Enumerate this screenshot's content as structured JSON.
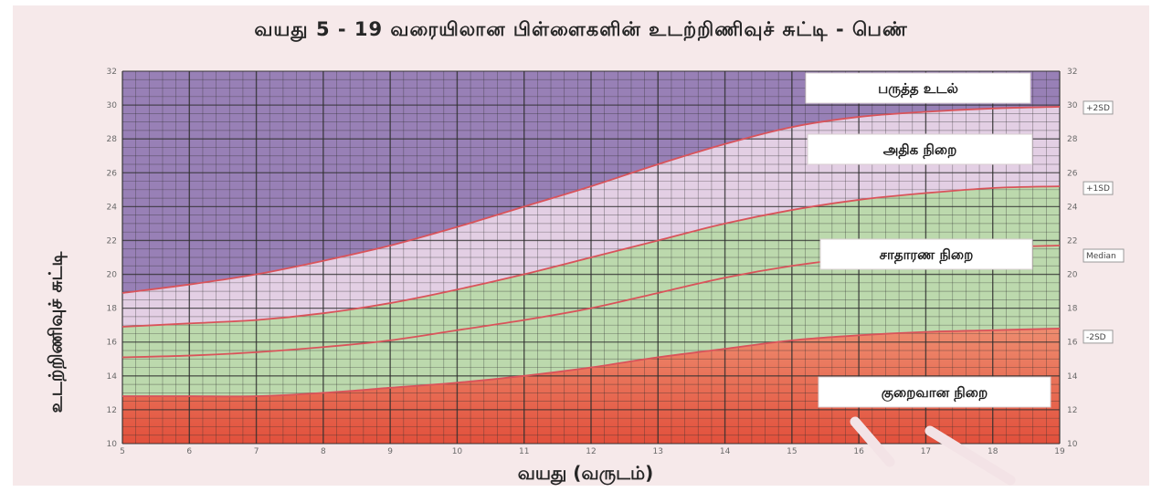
{
  "title": "வயது 5 - 19 வரையிலான பிள்ளைகளின் உடற்றிணிவுச் சுட்டி - பெண்",
  "colors": {
    "obese_zone": "#9880b6",
    "overweight_zone": "#e3cfe4",
    "normal_zone": "#bcd9ad",
    "underweight_zone": "#e9775a",
    "curve": "#d9535a",
    "grid": "#2e2e2e"
  },
  "chart_data": {
    "type": "line",
    "title": "வயது 5 - 19 வரையிலான பிள்ளைகளின் உடற்றிணிவுச் சுட்டி - பெண்",
    "xlabel": "வயது (வருடம்)",
    "ylabel": "உடற்றிணிவுச் சுட்டி",
    "xlim": [
      5,
      19
    ],
    "ylim": [
      10,
      32
    ],
    "x_ticks": [
      "5",
      "6",
      "7",
      "8",
      "9",
      "10",
      "11",
      "12",
      "13",
      "14",
      "15",
      "16",
      "17",
      "18",
      "19"
    ],
    "y_ticks": [
      "10",
      "12",
      "14",
      "16",
      "18",
      "20",
      "22",
      "24",
      "26",
      "28",
      "30",
      "32"
    ],
    "grid": true,
    "x": [
      5,
      6,
      7,
      8,
      9,
      10,
      11,
      12,
      13,
      14,
      15,
      16,
      17,
      18,
      19
    ],
    "series": [
      {
        "name": "+2SD",
        "values": [
          18.9,
          19.4,
          20.0,
          20.8,
          21.7,
          22.8,
          24.0,
          25.2,
          26.5,
          27.7,
          28.7,
          29.3,
          29.6,
          29.8,
          29.9
        ]
      },
      {
        "name": "+1SD",
        "values": [
          16.9,
          17.1,
          17.3,
          17.7,
          18.3,
          19.1,
          20.0,
          21.0,
          22.0,
          23.0,
          23.8,
          24.4,
          24.8,
          25.1,
          25.2
        ]
      },
      {
        "name": "Median",
        "values": [
          15.1,
          15.2,
          15.4,
          15.7,
          16.1,
          16.7,
          17.3,
          18.0,
          18.9,
          19.8,
          20.5,
          21.0,
          21.4,
          21.6,
          21.7
        ]
      },
      {
        "name": "-2SD",
        "values": [
          12.8,
          12.8,
          12.8,
          13.0,
          13.3,
          13.6,
          14.0,
          14.5,
          15.1,
          15.6,
          16.1,
          16.4,
          16.6,
          16.7,
          16.8
        ]
      }
    ],
    "sd_tags": [
      "+2SD",
      "+1SD",
      "Median",
      "-2SD"
    ],
    "zones": [
      {
        "label": "பருத்த உடல்",
        "band": "above +2SD"
      },
      {
        "label": "அதிக நிறை",
        "band": "+1SD to +2SD"
      },
      {
        "label": "சாதாரண நிறை",
        "band": "-2SD to +1SD"
      },
      {
        "label": "குறைவான நிறை",
        "band": "below -2SD"
      }
    ]
  }
}
